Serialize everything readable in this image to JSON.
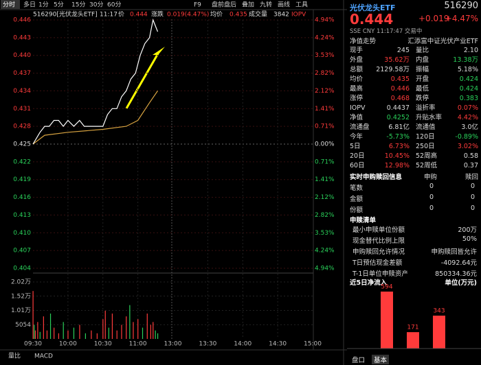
{
  "toolbar": {
    "tabs": [
      "分时",
      "多日",
      "1分",
      "5分",
      "15分",
      "30分",
      "60分"
    ],
    "tools": [
      "F9",
      "盘前盘后",
      "叠加",
      "九转",
      "画线",
      "工具"
    ]
  },
  "info": {
    "code": "516290[光伏龙头ETF]",
    "time": "11:17",
    "price_label": "价",
    "price": "0.444",
    "change_label": "涨跌",
    "change": "0.019(4.47%)",
    "avg_label": "均价",
    "avg": "0.435",
    "vol_label": "成交量",
    "vol": "3842",
    "iopv": "IOPV"
  },
  "intraday": {
    "yticks": [
      0.446,
      0.443,
      {
        "value": 0.44,
        "label": "0.440"
      },
      0.437,
      0.434,
      0.431,
      0.428,
      0.425,
      0.422,
      0.419,
      0.416,
      0.413,
      {
        "value": 0.41,
        "label": "0.410"
      },
      0.407,
      0.404
    ],
    "pct_labels": [
      "4.94%",
      "4.24%",
      "3.53%",
      "2.82%",
      "2.12%",
      "1.41%",
      "0.71%",
      "0.00%",
      "0.71%",
      "1.41%",
      "2.12%",
      "2.82%",
      "3.53%",
      "4.24%",
      "4.94%"
    ],
    "ylim": [
      0.404,
      0.446
    ],
    "time_labels": [
      "09:30",
      "10:00",
      "10:30",
      "11:00",
      "13:00",
      "13:30",
      "14:00",
      "14:30",
      "15:00"
    ],
    "xlim": [
      0,
      240
    ],
    "price_minutes": [
      0,
      3,
      6,
      10,
      14,
      18,
      22,
      26,
      30,
      35,
      40,
      44,
      48,
      52,
      56,
      60,
      64,
      68,
      72,
      76,
      80,
      84,
      88,
      92,
      96,
      100,
      103,
      105,
      107
    ],
    "price": [
      0.425,
      0.426,
      0.427,
      0.428,
      0.428,
      0.429,
      0.429,
      0.428,
      0.429,
      0.428,
      0.429,
      0.428,
      0.428,
      0.428,
      0.428,
      0.428,
      0.43,
      0.431,
      0.431,
      0.433,
      0.434,
      0.436,
      0.437,
      0.44,
      0.442,
      0.443,
      0.446,
      0.445,
      0.444
    ],
    "avg_minutes": [
      0,
      10,
      30,
      60,
      80,
      90,
      100,
      107
    ],
    "avg": [
      0.425,
      0.4265,
      0.427,
      0.4275,
      0.428,
      0.429,
      0.432,
      0.434
    ],
    "vticks": [
      {
        "value": 20200,
        "label": "2.02万"
      },
      {
        "value": 15200,
        "label": "1.52万"
      },
      {
        "value": 10100,
        "label": "1.01万"
      },
      5054
    ],
    "vlim": [
      0,
      20200
    ],
    "vol_minutes": [
      0,
      1,
      2,
      4,
      6,
      9,
      12,
      15,
      18,
      22,
      26,
      30,
      35,
      40,
      45,
      50,
      55,
      60,
      62,
      65,
      68,
      72,
      76,
      80,
      83,
      86,
      90,
      94,
      98,
      101,
      103,
      105,
      107
    ],
    "vol": [
      17000,
      5000,
      3000,
      6000,
      2500,
      8000,
      3000,
      9000,
      4000,
      2000,
      6000,
      3000,
      4000,
      5000,
      2000,
      3000,
      2000,
      7000,
      10000,
      4000,
      9000,
      3000,
      5000,
      8000,
      12000,
      6000,
      7000,
      4000,
      9000,
      5000,
      6000,
      3000,
      2000
    ],
    "vol_up": [
      true,
      false,
      true,
      true,
      false,
      true,
      true,
      false,
      true,
      true,
      false,
      true,
      false,
      true,
      false,
      true,
      true,
      true,
      true,
      false,
      true,
      true,
      true,
      true,
      false,
      true,
      true,
      false,
      true,
      true,
      true,
      false,
      false
    ]
  },
  "bottom_tabs": [
    "量比",
    "MACD"
  ],
  "quote": {
    "name": "光伏龙头ETF",
    "code": "516290",
    "price": "0.444",
    "change": "+0.019",
    "pct": "+4.47%",
    "sub": "SSE  CNY  11:17:47  交易中",
    "nav_label": "净值走势",
    "nav_name": "汇添富中证光伏产业ETF",
    "rows": [
      [
        "现手",
        "245",
        "",
        "量比",
        "2.10",
        ""
      ],
      [
        "外盘",
        "35.62万",
        "up",
        "内盘",
        "13.38万",
        "down"
      ],
      [
        "总额",
        "2129.58万",
        "",
        "振幅",
        "5.18%",
        ""
      ],
      [
        "均价",
        "0.435",
        "up",
        "开盘",
        "0.424",
        "down"
      ],
      [
        "最高",
        "0.446",
        "up",
        "最低",
        "0.424",
        "down"
      ],
      [
        "涨停",
        "0.468",
        "up",
        "跌停",
        "0.383",
        "down"
      ],
      [
        "IOPV",
        "0.4437",
        "",
        "溢折率",
        "0.07%",
        "up"
      ],
      [
        "净值",
        "0.4252",
        "down",
        "升贴水率",
        "4.42%",
        "up"
      ],
      [
        "流通盘",
        "6.81亿",
        "",
        "流通值",
        "3.0亿",
        ""
      ],
      [
        "今年",
        "-5.73%",
        "down",
        "120日",
        "-0.89%",
        "down"
      ],
      [
        "5日",
        "6.73%",
        "up",
        "250日",
        "3.02%",
        "up"
      ],
      [
        "20日",
        "10.45%",
        "up",
        "52周高",
        "0.58",
        ""
      ],
      [
        "60日",
        "12.98%",
        "up",
        "52周低",
        "0.37",
        ""
      ]
    ]
  },
  "subscribe": {
    "title": "实时申购赎回信息",
    "cols": [
      "申购",
      "赎回"
    ],
    "rows": [
      [
        "笔数",
        "0",
        "0"
      ],
      [
        "金额",
        "0",
        "0"
      ],
      [
        "份额",
        "0",
        "0"
      ]
    ]
  },
  "list": {
    "title": "申赎清单",
    "rows": [
      [
        "最小申赎单位份额",
        "200万"
      ],
      [
        "现金替代比例上限",
        "50%"
      ],
      [
        "申购赎回允许情况",
        "申购赎回皆允许"
      ],
      [
        "T日预估现金差额",
        "-4092.64元"
      ],
      [
        "T-1日单位申赎资产",
        "850334.36元"
      ]
    ]
  },
  "inflow": {
    "title": "近5日净流入",
    "unit": "单位(万元)",
    "values": [
      594,
      171,
      343
    ]
  },
  "side_tabs": [
    "盘口",
    "基本"
  ]
}
